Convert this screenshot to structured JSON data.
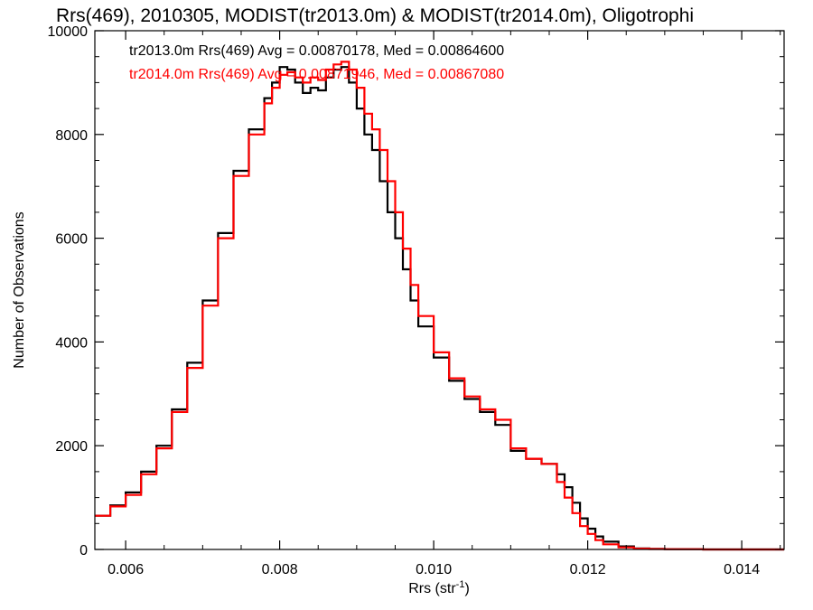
{
  "chart_data": {
    "type": "line",
    "title": "Rrs(469), 2010305, MODIST(tr2013.0m) & MODIST(tr2014.0m), Oligotrophi",
    "xlabel": "Rrs (str",
    "xlabel_sup": "-1",
    "xlabel_close": ")",
    "ylabel": "Number of Observations",
    "xlim": [
      0.0056,
      0.01455
    ],
    "ylim": [
      0,
      10000
    ],
    "x_ticks": [
      "0.006",
      "0.008",
      "0.010",
      "0.012",
      "0.014"
    ],
    "y_ticks": [
      "0",
      "2000",
      "4000",
      "6000",
      "8000",
      "10000"
    ],
    "grid": false,
    "series": [
      {
        "name": "tr2013.0m",
        "color": "#000000",
        "annotation": "tr2013.0m Rrs(469) Avg = 0.00870178, Med = 0.00864600",
        "x": [
          0.0056,
          0.0058,
          0.006,
          0.0062,
          0.0064,
          0.0066,
          0.0068,
          0.007,
          0.0072,
          0.0074,
          0.0076,
          0.0078,
          0.0079,
          0.008,
          0.0081,
          0.0082,
          0.0083,
          0.0084,
          0.0085,
          0.0086,
          0.0087,
          0.0088,
          0.0089,
          0.009,
          0.0091,
          0.0092,
          0.0093,
          0.0094,
          0.0095,
          0.0096,
          0.0097,
          0.0098,
          0.01,
          0.0102,
          0.0104,
          0.0106,
          0.0108,
          0.011,
          0.0112,
          0.0114,
          0.0116,
          0.0117,
          0.0118,
          0.0119,
          0.012,
          0.0121,
          0.0122,
          0.0124,
          0.0126,
          0.0128,
          0.013,
          0.0135,
          0.014,
          0.01455
        ],
        "y": [
          650,
          850,
          1100,
          1500,
          2000,
          2700,
          3600,
          4800,
          6100,
          7300,
          8100,
          8700,
          9000,
          9300,
          9250,
          9000,
          8800,
          8900,
          8850,
          9100,
          9250,
          9300,
          9000,
          8500,
          8000,
          7700,
          7100,
          6500,
          6000,
          5400,
          4800,
          4300,
          3700,
          3250,
          2900,
          2650,
          2400,
          1900,
          1750,
          1650,
          1450,
          1200,
          900,
          600,
          400,
          250,
          150,
          60,
          20,
          10,
          5,
          0,
          0,
          0
        ]
      },
      {
        "name": "tr2014.0m",
        "color": "#ff0000",
        "annotation": "tr2014.0m Rrs(469) Avg = 0.00871946, Med = 0.00867080",
        "x": [
          0.0056,
          0.0058,
          0.006,
          0.0062,
          0.0064,
          0.0066,
          0.0068,
          0.007,
          0.0072,
          0.0074,
          0.0076,
          0.0078,
          0.0079,
          0.008,
          0.0081,
          0.0082,
          0.0083,
          0.0084,
          0.0085,
          0.0086,
          0.0087,
          0.0088,
          0.0089,
          0.009,
          0.0091,
          0.0092,
          0.0093,
          0.0094,
          0.0095,
          0.0096,
          0.0097,
          0.0098,
          0.01,
          0.0102,
          0.0104,
          0.0106,
          0.0108,
          0.011,
          0.0112,
          0.0114,
          0.0116,
          0.0117,
          0.0118,
          0.0119,
          0.012,
          0.0121,
          0.0122,
          0.0124,
          0.0126,
          0.0128,
          0.013,
          0.0135,
          0.014,
          0.01455
        ],
        "y": [
          650,
          830,
          1050,
          1450,
          1950,
          2650,
          3500,
          4700,
          6000,
          7200,
          8000,
          8600,
          8900,
          9150,
          9200,
          9100,
          9000,
          9100,
          9050,
          9250,
          9350,
          9400,
          9250,
          8900,
          8400,
          8100,
          7700,
          7100,
          6500,
          5800,
          5100,
          4500,
          3800,
          3300,
          2950,
          2700,
          2500,
          1950,
          1750,
          1650,
          1300,
          1000,
          700,
          450,
          300,
          180,
          100,
          40,
          15,
          8,
          5,
          0,
          0,
          0
        ]
      }
    ]
  }
}
